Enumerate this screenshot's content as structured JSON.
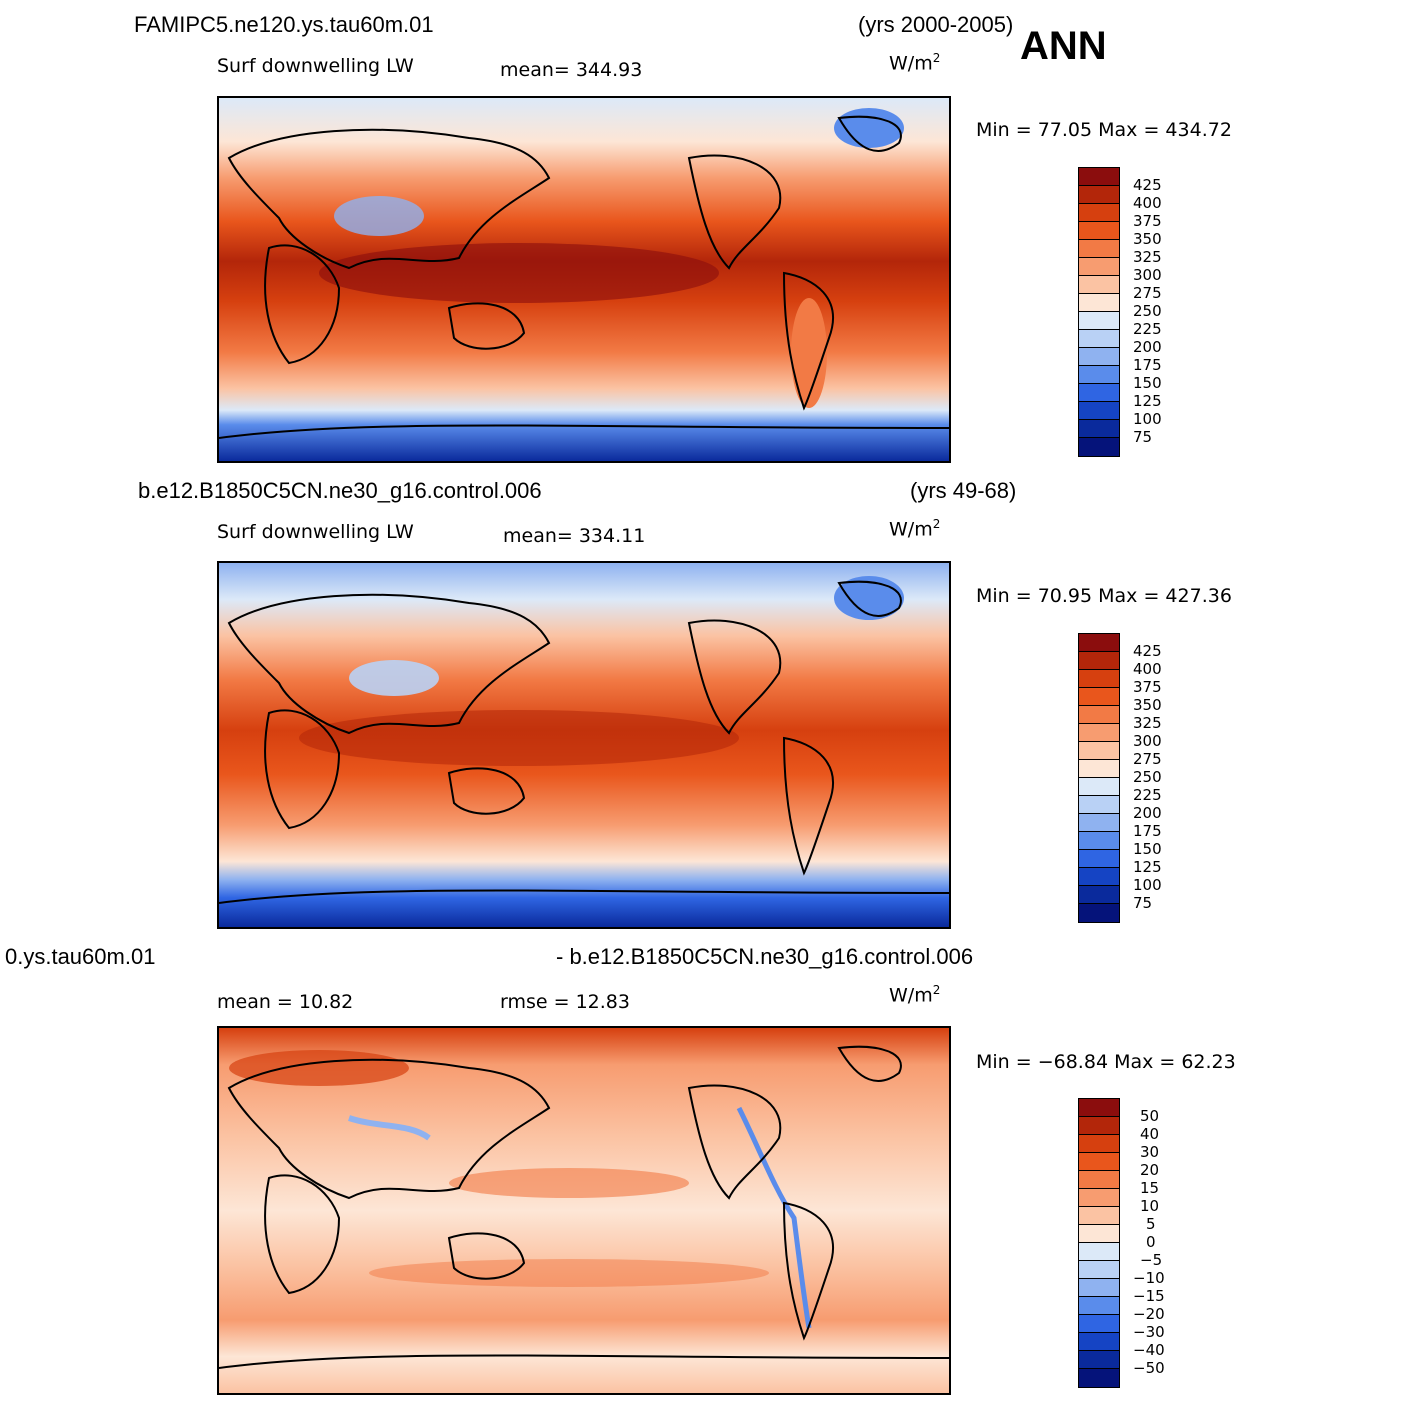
{
  "season": "ANN",
  "units_base": "W/m",
  "units_exp": "2",
  "panel1": {
    "case": "FAMIPC5.ne120.ys.tau60m.01",
    "years": "(yrs 2000-2005)",
    "variable": "Surf downwelling LW",
    "mean_label": "mean= 344.93",
    "minmax": "Min =  77.05 Max = 434.72",
    "levels": [
      "425",
      "400",
      "375",
      "350",
      "325",
      "300",
      "275",
      "250",
      "225",
      "200",
      "175",
      "150",
      "125",
      "100",
      "75"
    ]
  },
  "panel2": {
    "case": "b.e12.B1850C5CN.ne30_g16.control.006",
    "years": "(yrs 49-68)",
    "variable": "Surf downwelling LW",
    "mean_label": "mean= 334.11",
    "minmax": "Min =  70.95 Max = 427.36",
    "levels": [
      "425",
      "400",
      "375",
      "350",
      "325",
      "300",
      "275",
      "250",
      "225",
      "200",
      "175",
      "150",
      "125",
      "100",
      "75"
    ]
  },
  "panel3": {
    "case_left": "0.ys.tau60m.01",
    "case_right": "- b.e12.B1850C5CN.ne30_g16.control.006",
    "mean_label": "mean =   10.82",
    "rmse_label": "rmse =   12.83",
    "minmax": "Min = −68.84 Max =  62.23",
    "levels": [
      "50",
      "40",
      "30",
      "20",
      "15",
      "10",
      "5",
      "0",
      "−5",
      "−10",
      "−15",
      "−20",
      "−30",
      "−40",
      "−50"
    ]
  },
  "colors": {
    "scale": [
      "#8b0d0d",
      "#b3260a",
      "#d6400f",
      "#e9561c",
      "#f27a45",
      "#f79c70",
      "#fbc3a3",
      "#fde6d6",
      "#dce9f8",
      "#b9d1f5",
      "#8fb2f0",
      "#5a8ceb",
      "#2f65e3",
      "#1544c4",
      "#0a2a9c",
      "#05137a"
    ]
  }
}
